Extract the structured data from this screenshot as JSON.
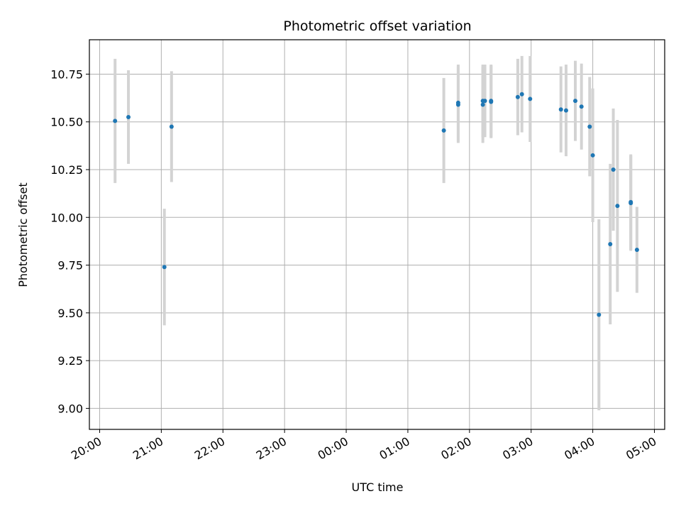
{
  "chart_data": {
    "type": "scatter",
    "title": "Photometric offset variation",
    "xlabel": "UTC time",
    "ylabel": "Photometric offset",
    "xlim": [
      "19:50",
      "05:10"
    ],
    "ylim": [
      8.89,
      10.93
    ],
    "grid": true,
    "x_ticks": [
      "20:00",
      "21:00",
      "22:00",
      "23:00",
      "00:00",
      "01:00",
      "02:00",
      "03:00",
      "04:00",
      "05:00"
    ],
    "y_ticks": [
      "9.00",
      "9.25",
      "9.50",
      "9.75",
      "10.00",
      "10.25",
      "10.50",
      "10.75"
    ],
    "marker_color": "#1f77b4",
    "errorbar_color": "#d3d3d3",
    "points": [
      {
        "t": "20:15",
        "y": 10.505,
        "err": 0.325
      },
      {
        "t": "20:28",
        "y": 10.525,
        "err": 0.245
      },
      {
        "t": "21:03",
        "y": 9.74,
        "err": 0.305
      },
      {
        "t": "21:10",
        "y": 10.475,
        "err": 0.29
      },
      {
        "t": "01:35",
        "y": 10.455,
        "err": 0.275
      },
      {
        "t": "01:49",
        "y": 10.6,
        "err": 0.2
      },
      {
        "t": "01:49",
        "y": 10.59,
        "err": 0.2
      },
      {
        "t": "02:13",
        "y": 10.61,
        "err": 0.19
      },
      {
        "t": "02:13",
        "y": 10.59,
        "err": 0.2
      },
      {
        "t": "02:15",
        "y": 10.61,
        "err": 0.19
      },
      {
        "t": "02:21",
        "y": 10.605,
        "err": 0.19
      },
      {
        "t": "02:21",
        "y": 10.61,
        "err": 0.19
      },
      {
        "t": "02:47",
        "y": 10.63,
        "err": 0.2
      },
      {
        "t": "02:51",
        "y": 10.645,
        "err": 0.2
      },
      {
        "t": "02:59",
        "y": 10.62,
        "err": 0.225
      },
      {
        "t": "03:29",
        "y": 10.565,
        "err": 0.225
      },
      {
        "t": "03:34",
        "y": 10.56,
        "err": 0.24
      },
      {
        "t": "03:43",
        "y": 10.61,
        "err": 0.21
      },
      {
        "t": "03:49",
        "y": 10.58,
        "err": 0.225
      },
      {
        "t": "03:57",
        "y": 10.475,
        "err": 0.26
      },
      {
        "t": "04:00",
        "y": 10.325,
        "err": 0.35
      },
      {
        "t": "04:06",
        "y": 9.49,
        "err": 0.5
      },
      {
        "t": "04:17",
        "y": 9.86,
        "err": 0.42
      },
      {
        "t": "04:20",
        "y": 10.25,
        "err": 0.32
      },
      {
        "t": "04:24",
        "y": 10.06,
        "err": 0.45
      },
      {
        "t": "04:37",
        "y": 10.075,
        "err": 0.25
      },
      {
        "t": "04:37",
        "y": 10.08,
        "err": 0.25
      },
      {
        "t": "04:43",
        "y": 9.83,
        "err": 0.225
      }
    ]
  }
}
